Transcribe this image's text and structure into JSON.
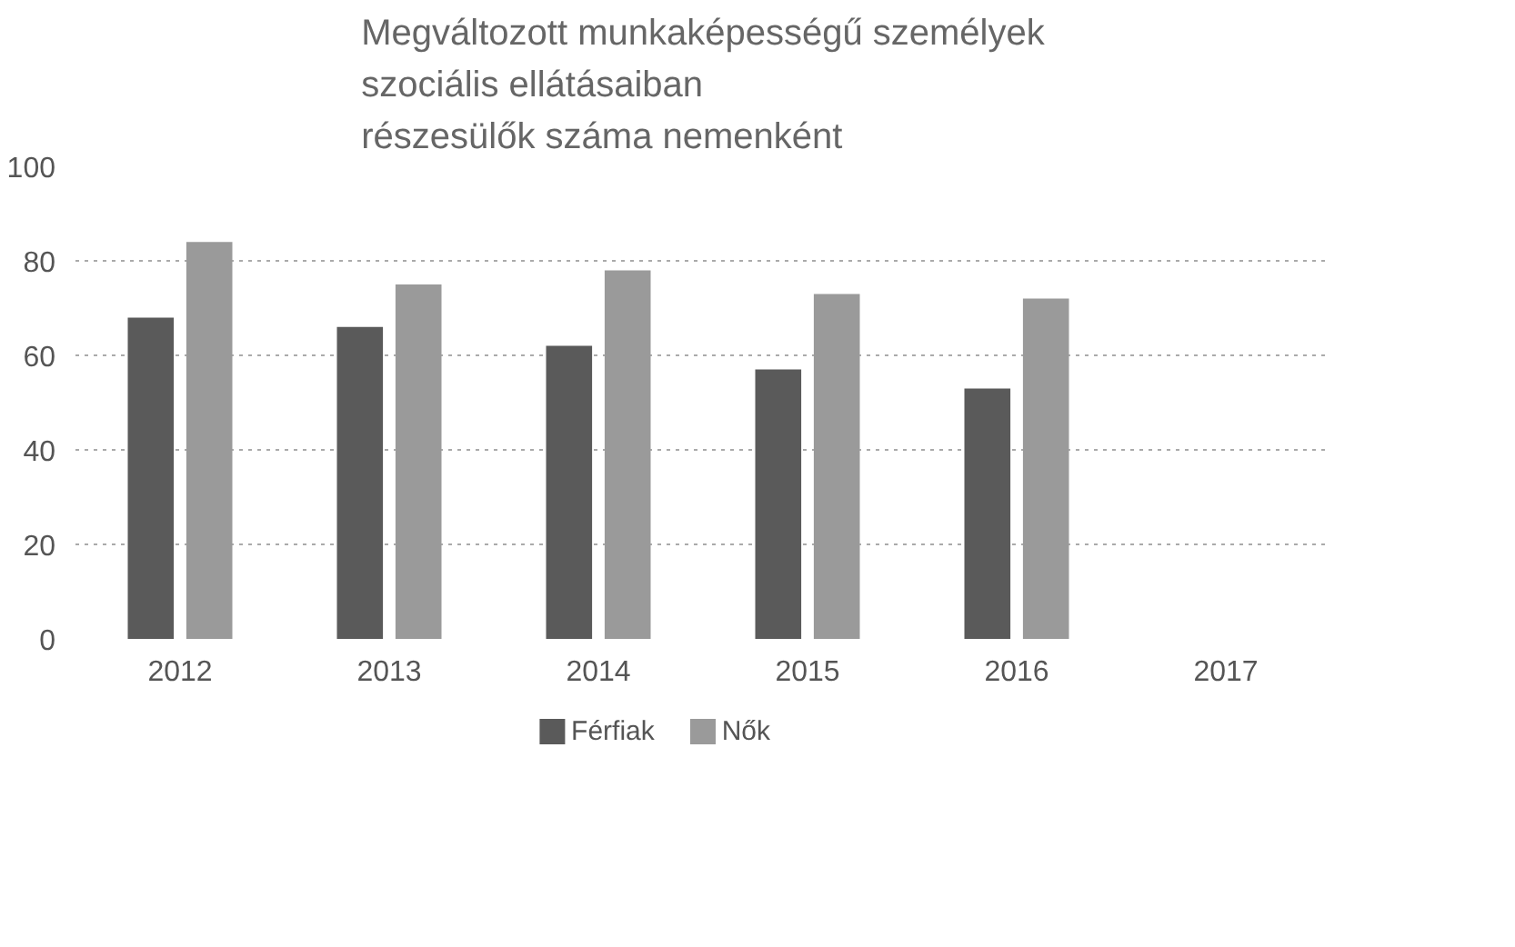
{
  "chart_data": {
    "type": "bar",
    "title": "Megváltozott munkaképességű személyek\nszociális ellátásaiban\nrészesülők száma nemenként",
    "categories": [
      "2012",
      "2013",
      "2014",
      "2015",
      "2016",
      "2017"
    ],
    "series": [
      {
        "name": "Férfiak",
        "color": "#5a5a5a",
        "values": [
          68,
          66,
          62,
          57,
          53,
          null
        ]
      },
      {
        "name": "Nők",
        "color": "#9a9a9a",
        "values": [
          84,
          75,
          78,
          73,
          72,
          null
        ]
      }
    ],
    "ylim": [
      0,
      100
    ],
    "yticks": [
      0,
      20,
      40,
      60,
      80,
      100
    ],
    "grid": "y",
    "legend": "bottom"
  }
}
